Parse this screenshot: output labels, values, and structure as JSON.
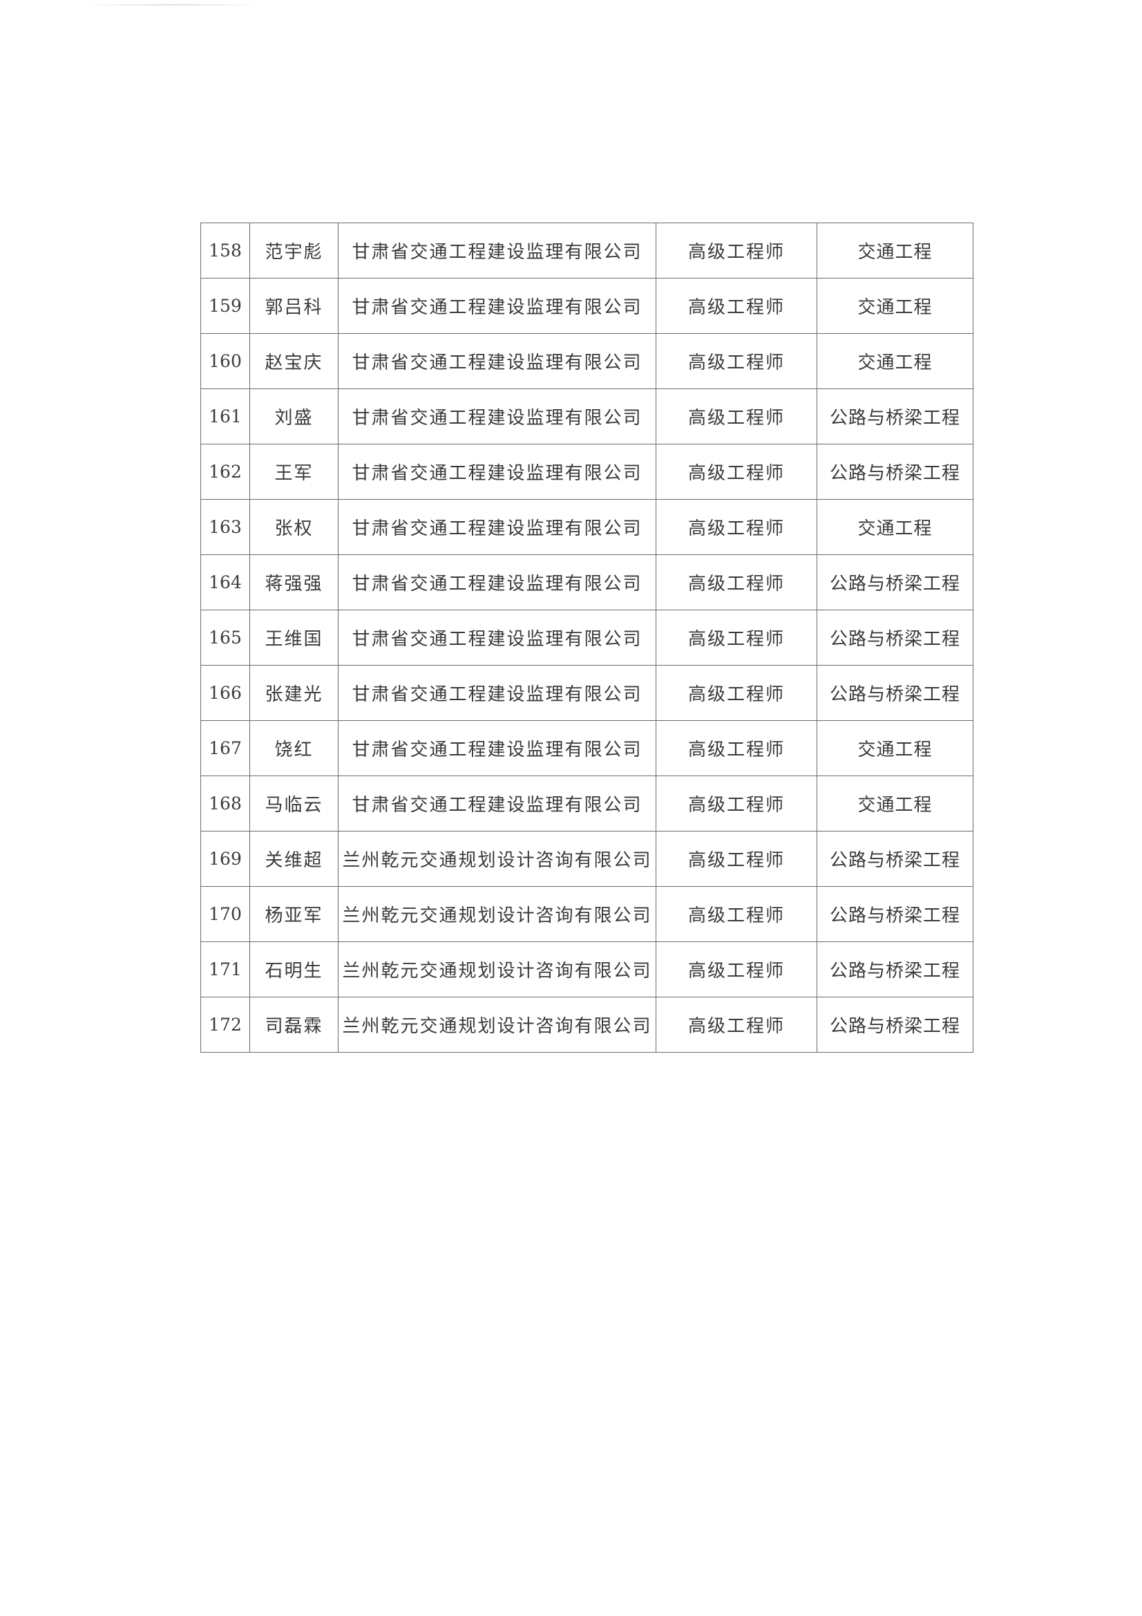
{
  "table": {
    "rows": [
      {
        "no": "158",
        "name": "范宇彪",
        "company": "甘肃省交通工程建设监理有限公司",
        "title": "高级工程师",
        "specialty": "交通工程"
      },
      {
        "no": "159",
        "name": "郭吕科",
        "company": "甘肃省交通工程建设监理有限公司",
        "title": "高级工程师",
        "specialty": "交通工程"
      },
      {
        "no": "160",
        "name": "赵宝庆",
        "company": "甘肃省交通工程建设监理有限公司",
        "title": "高级工程师",
        "specialty": "交通工程"
      },
      {
        "no": "161",
        "name": "刘盛",
        "company": "甘肃省交通工程建设监理有限公司",
        "title": "高级工程师",
        "specialty": "公路与桥梁工程"
      },
      {
        "no": "162",
        "name": "王军",
        "company": "甘肃省交通工程建设监理有限公司",
        "title": "高级工程师",
        "specialty": "公路与桥梁工程"
      },
      {
        "no": "163",
        "name": "张权",
        "company": "甘肃省交通工程建设监理有限公司",
        "title": "高级工程师",
        "specialty": "交通工程"
      },
      {
        "no": "164",
        "name": "蒋强强",
        "company": "甘肃省交通工程建设监理有限公司",
        "title": "高级工程师",
        "specialty": "公路与桥梁工程"
      },
      {
        "no": "165",
        "name": "王维国",
        "company": "甘肃省交通工程建设监理有限公司",
        "title": "高级工程师",
        "specialty": "公路与桥梁工程"
      },
      {
        "no": "166",
        "name": "张建光",
        "company": "甘肃省交通工程建设监理有限公司",
        "title": "高级工程师",
        "specialty": "公路与桥梁工程"
      },
      {
        "no": "167",
        "name": "饶红",
        "company": "甘肃省交通工程建设监理有限公司",
        "title": "高级工程师",
        "specialty": "交通工程"
      },
      {
        "no": "168",
        "name": "马临云",
        "company": "甘肃省交通工程建设监理有限公司",
        "title": "高级工程师",
        "specialty": "交通工程"
      },
      {
        "no": "169",
        "name": "关维超",
        "company": "兰州乾元交通规划设计咨询有限公司",
        "title": "高级工程师",
        "specialty": "公路与桥梁工程"
      },
      {
        "no": "170",
        "name": "杨亚军",
        "company": "兰州乾元交通规划设计咨询有限公司",
        "title": "高级工程师",
        "specialty": "公路与桥梁工程"
      },
      {
        "no": "171",
        "name": "石明生",
        "company": "兰州乾元交通规划设计咨询有限公司",
        "title": "高级工程师",
        "specialty": "公路与桥梁工程"
      },
      {
        "no": "172",
        "name": "司磊霖",
        "company": "兰州乾元交通规划设计咨询有限公司",
        "title": "高级工程师",
        "specialty": "公路与桥梁工程"
      }
    ]
  }
}
